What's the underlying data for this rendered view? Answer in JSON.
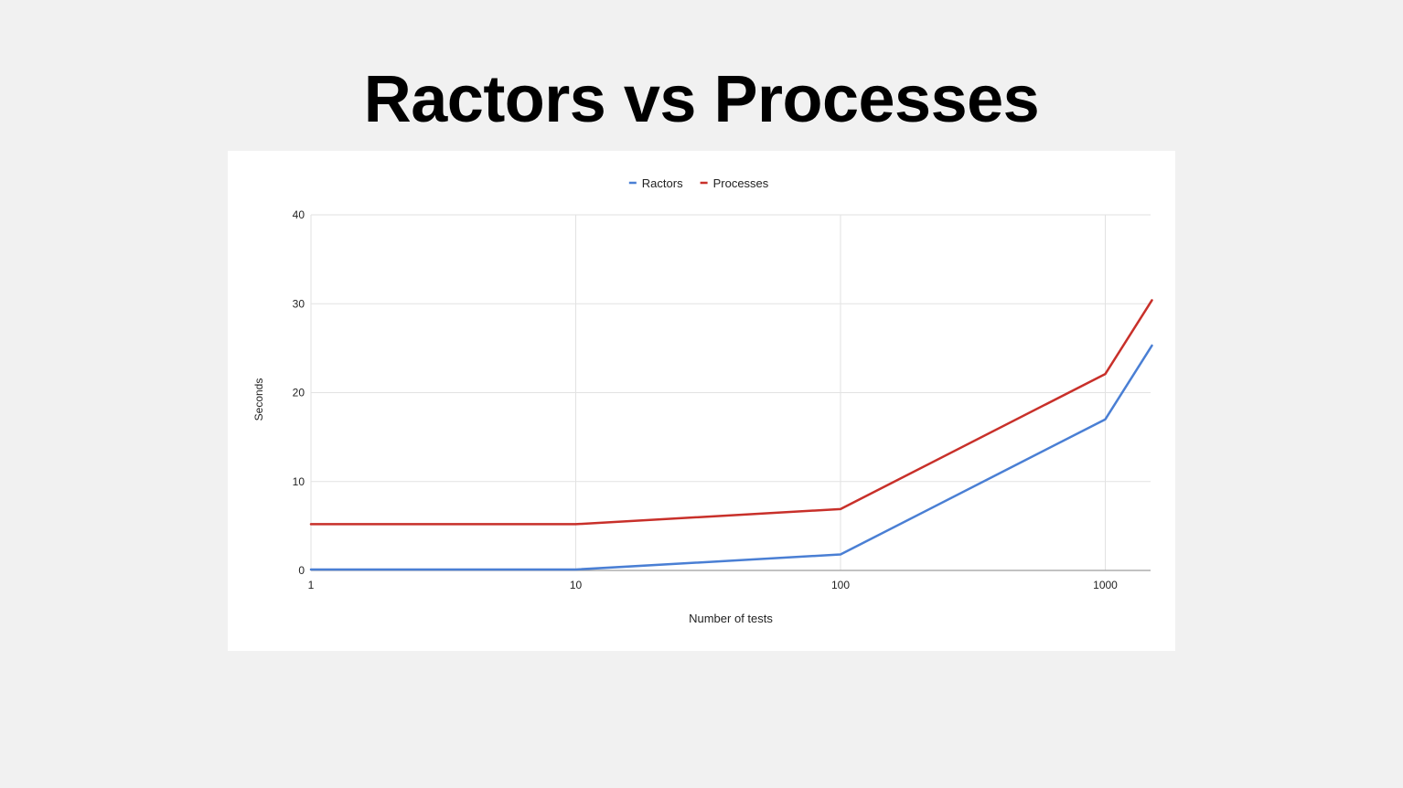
{
  "slide": {
    "title": "Ractors vs Processes"
  },
  "chart_data": {
    "type": "line",
    "x_scale": "log",
    "x": [
      1,
      10,
      100,
      1000,
      1500
    ],
    "x_ticks": [
      "1",
      "10",
      "100",
      "1000"
    ],
    "xlim": [
      1,
      1500
    ],
    "y_ticks": [
      "0",
      "10",
      "20",
      "30",
      "40"
    ],
    "ylim": [
      0,
      40
    ],
    "xlabel": "Number of tests",
    "ylabel": "Seconds",
    "grid": true,
    "legend_position": "top-center",
    "series": [
      {
        "name": "Ractors",
        "color": "#4a7fd4",
        "values": [
          0.1,
          0.1,
          1.8,
          17.0,
          25.3
        ]
      },
      {
        "name": "Processes",
        "color": "#c8302a",
        "values": [
          5.2,
          5.2,
          6.9,
          22.1,
          30.4
        ]
      }
    ]
  }
}
